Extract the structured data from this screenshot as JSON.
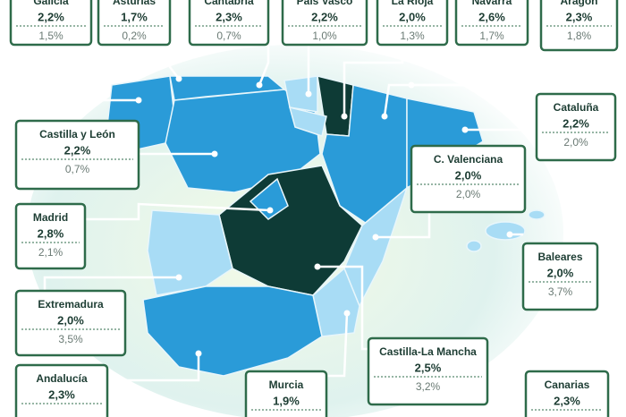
{
  "regions": [
    {
      "name": "Galicia",
      "value": "2,2%",
      "previous": "1,5%"
    },
    {
      "name": "Asturias",
      "value": "1,7%",
      "previous": "0,2%"
    },
    {
      "name": "Cantabria",
      "value": "2,3%",
      "previous": "0,7%"
    },
    {
      "name": "País Vasco",
      "value": "2,2%",
      "previous": "1,0%"
    },
    {
      "name": "La Rioja",
      "value": "2,0%",
      "previous": "1,3%"
    },
    {
      "name": "Navarra",
      "value": "2,6%",
      "previous": "1,7%"
    },
    {
      "name": "Aragón",
      "value": "2,3%",
      "previous": "1,8%"
    },
    {
      "name": "Cataluña",
      "value": "2,2%",
      "previous": "2,0%"
    },
    {
      "name": "Castilla y León",
      "value": "2,2%",
      "previous": "0,7%"
    },
    {
      "name": "C. Valenciana",
      "value": "2,0%",
      "previous": "2,0%"
    },
    {
      "name": "Madrid",
      "value": "2,8%",
      "previous": "2,1%"
    },
    {
      "name": "Baleares",
      "value": "2,0%",
      "previous": "3,7%"
    },
    {
      "name": "Extremadura",
      "value": "2,0%",
      "previous": "3,5%"
    },
    {
      "name": "Castilla-La Mancha",
      "value": "2,5%",
      "previous": "3,2%"
    },
    {
      "name": "Andalucía",
      "value": "2,3%"
    },
    {
      "name": "Murcia",
      "value": "1,9%"
    },
    {
      "name": "Canarias",
      "value": "2,3%"
    }
  ]
}
